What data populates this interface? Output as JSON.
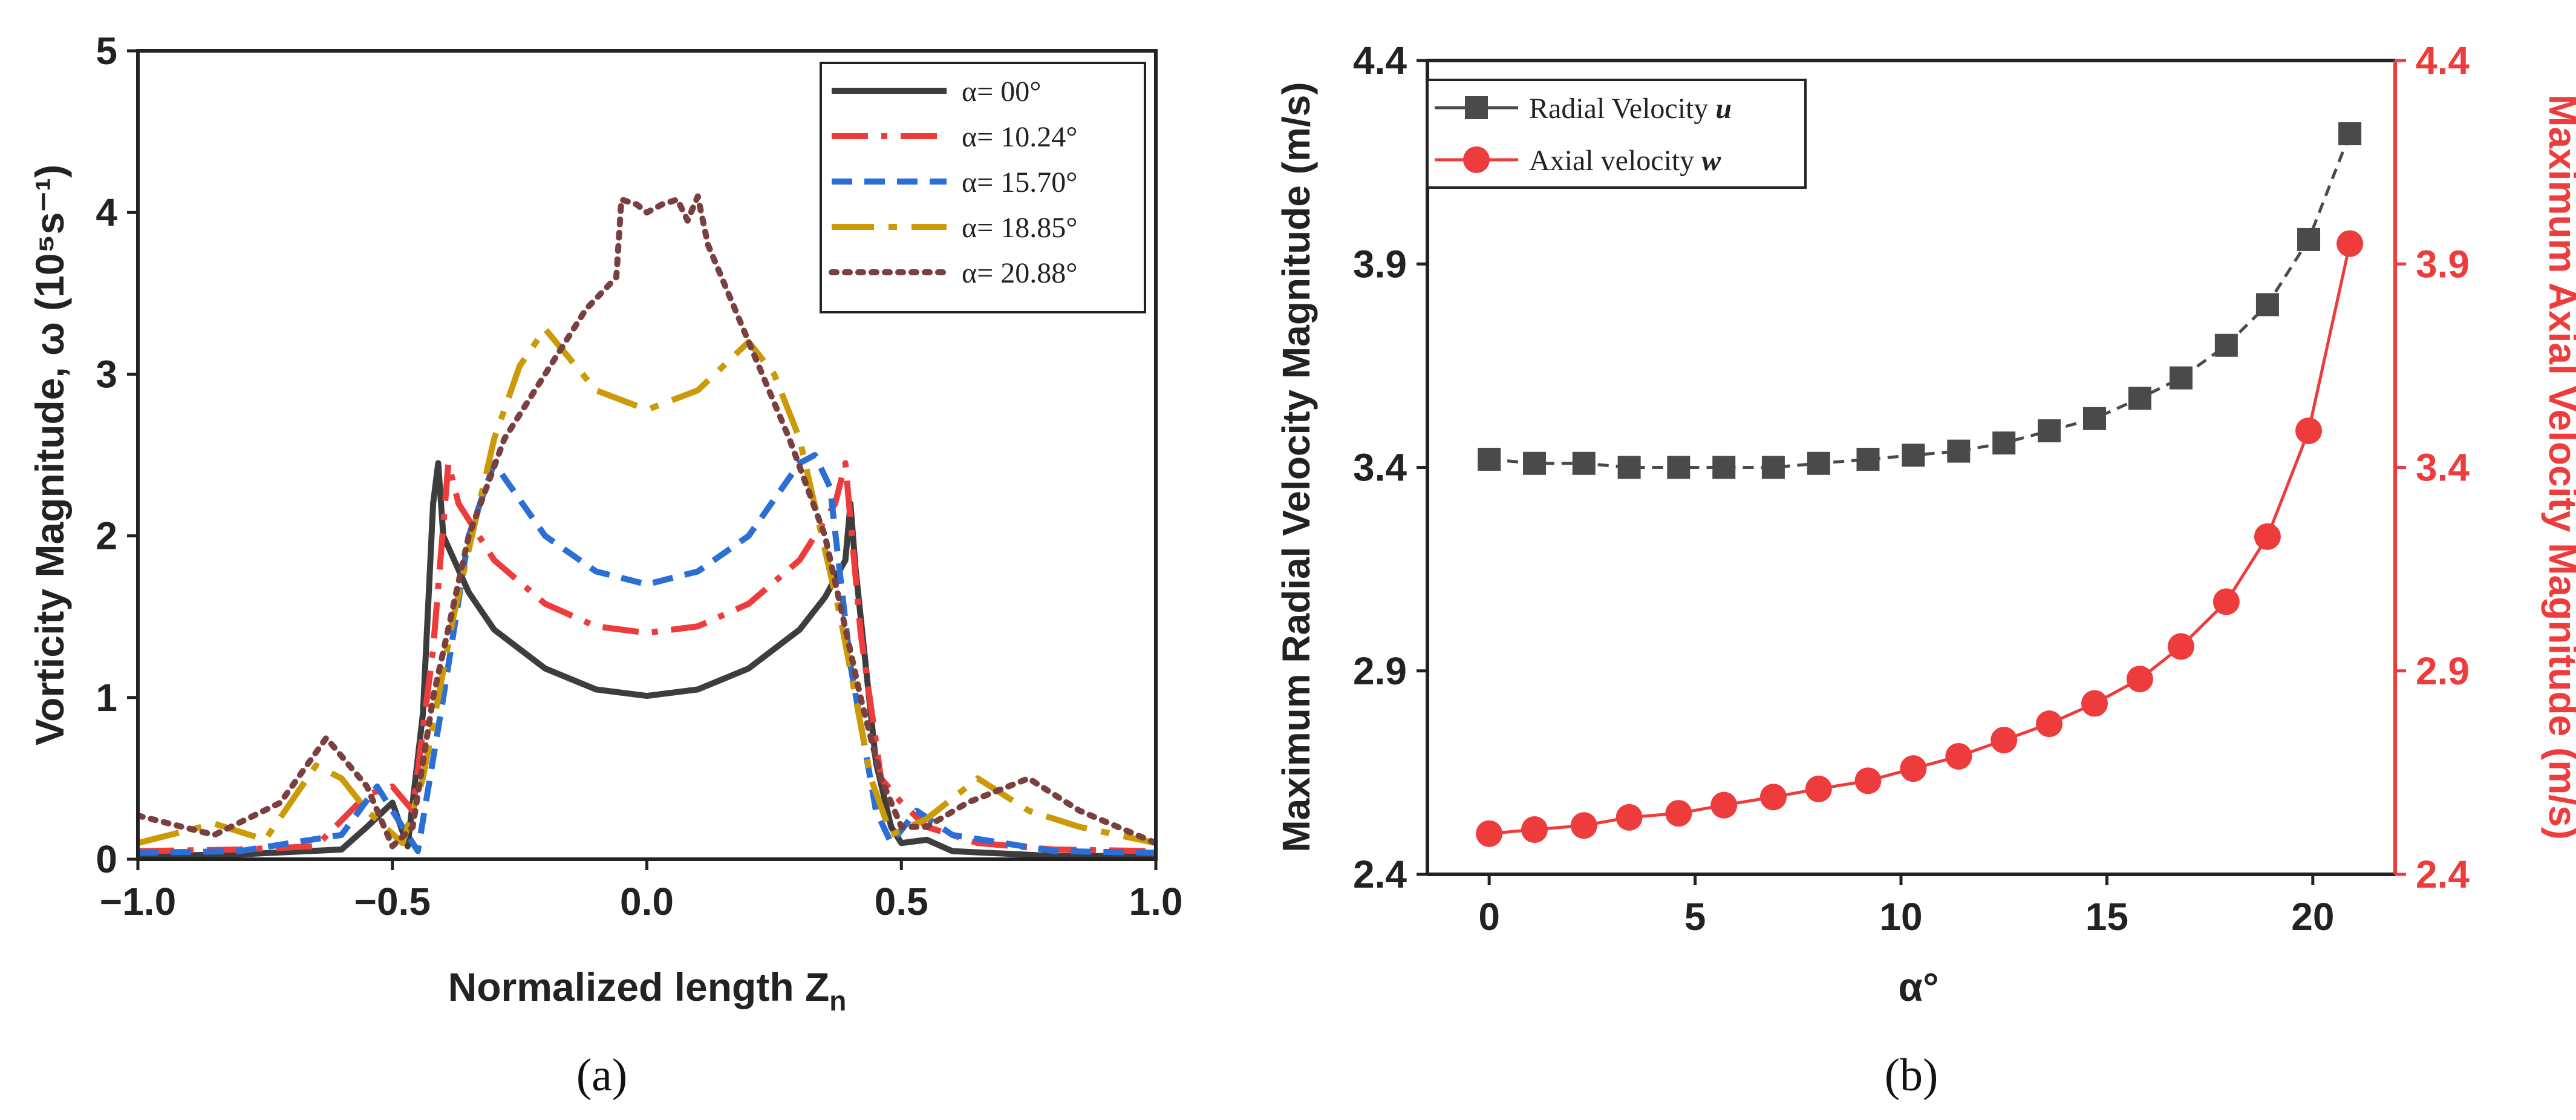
{
  "chart_data": [
    {
      "type": "line",
      "panel_label": "(a)",
      "xlabel": "Normalized length Z",
      "xlabel_sub": "n",
      "ylabel": "Vorticity Magnitude, ω (10⁵s⁻¹)",
      "xlim": [
        -1.0,
        1.0
      ],
      "ylim": [
        0,
        5
      ],
      "x_ticks": [
        "−1.0",
        "−0.5",
        "0.0",
        "0.5",
        "1.0"
      ],
      "y_ticks": [
        "0",
        "1",
        "2",
        "3",
        "4",
        "5"
      ],
      "series": [
        {
          "name": "α= 00°",
          "color": "#3d3d3d",
          "dash": "solid",
          "x": [
            -1.0,
            -0.8,
            -0.6,
            -0.55,
            -0.5,
            -0.47,
            -0.44,
            -0.42,
            -0.41,
            -0.4,
            -0.35,
            -0.3,
            -0.2,
            -0.1,
            0.0,
            0.1,
            0.2,
            0.3,
            0.35,
            0.39,
            0.4,
            0.41,
            0.43,
            0.45,
            0.48,
            0.5,
            0.55,
            0.6,
            0.8,
            1.0
          ],
          "y": [
            0.02,
            0.03,
            0.06,
            0.2,
            0.35,
            0.08,
            0.9,
            2.2,
            2.45,
            2.0,
            1.65,
            1.42,
            1.18,
            1.05,
            1.01,
            1.05,
            1.18,
            1.42,
            1.62,
            1.85,
            2.2,
            1.8,
            1.2,
            0.6,
            0.2,
            0.1,
            0.12,
            0.05,
            0.02,
            0.02
          ]
        },
        {
          "name": "α= 10.24°",
          "color": "#ee3b3b",
          "dash": "dashdot",
          "x": [
            -1.0,
            -0.8,
            -0.65,
            -0.55,
            -0.5,
            -0.46,
            -0.42,
            -0.39,
            -0.37,
            -0.3,
            -0.2,
            -0.1,
            0.0,
            0.1,
            0.2,
            0.3,
            0.37,
            0.39,
            0.42,
            0.46,
            0.5,
            0.55,
            0.65,
            0.8,
            1.0
          ],
          "y": [
            0.05,
            0.06,
            0.08,
            0.4,
            0.45,
            0.3,
            1.3,
            2.45,
            2.2,
            1.85,
            1.58,
            1.44,
            1.4,
            1.44,
            1.58,
            1.85,
            2.2,
            2.45,
            1.4,
            0.5,
            0.35,
            0.2,
            0.1,
            0.06,
            0.05
          ]
        },
        {
          "name": "α= 15.70°",
          "color": "#2b6fd6",
          "dash": "dashed",
          "x": [
            -1.0,
            -0.8,
            -0.6,
            -0.53,
            -0.48,
            -0.45,
            -0.4,
            -0.35,
            -0.3,
            -0.2,
            -0.1,
            0.0,
            0.1,
            0.2,
            0.3,
            0.33,
            0.36,
            0.4,
            0.45,
            0.48,
            0.53,
            0.6,
            0.8,
            1.0
          ],
          "y": [
            0.04,
            0.05,
            0.15,
            0.45,
            0.2,
            0.05,
            1.0,
            2.0,
            2.45,
            2.0,
            1.78,
            1.7,
            1.78,
            2.0,
            2.45,
            2.5,
            2.3,
            1.2,
            0.3,
            0.1,
            0.3,
            0.15,
            0.05,
            0.04
          ]
        },
        {
          "name": "α= 18.85°",
          "color": "#cc9a06",
          "dash": "longdashdot",
          "x": [
            -1.0,
            -0.85,
            -0.75,
            -0.65,
            -0.6,
            -0.55,
            -0.48,
            -0.44,
            -0.38,
            -0.3,
            -0.25,
            -0.2,
            -0.1,
            0.0,
            0.1,
            0.2,
            0.25,
            0.3,
            0.38,
            0.44,
            0.48,
            0.55,
            0.65,
            0.75,
            0.85,
            1.0
          ],
          "y": [
            0.1,
            0.22,
            0.12,
            0.58,
            0.5,
            0.3,
            0.1,
            0.5,
            1.5,
            2.6,
            3.05,
            3.28,
            2.9,
            2.78,
            2.9,
            3.2,
            3.0,
            2.6,
            1.5,
            0.5,
            0.15,
            0.25,
            0.5,
            0.3,
            0.2,
            0.1
          ]
        },
        {
          "name": "α= 20.88°",
          "color": "#7a4040",
          "dash": "dotted",
          "x": [
            -1.0,
            -0.85,
            -0.72,
            -0.63,
            -0.55,
            -0.5,
            -0.46,
            -0.42,
            -0.35,
            -0.28,
            -0.2,
            -0.12,
            -0.06,
            -0.05,
            -0.02,
            0.0,
            0.03,
            0.06,
            0.08,
            0.1,
            0.12,
            0.2,
            0.28,
            0.35,
            0.42,
            0.46,
            0.5,
            0.55,
            0.63,
            0.75,
            0.85,
            1.0
          ],
          "y": [
            0.27,
            0.15,
            0.35,
            0.75,
            0.45,
            0.08,
            0.2,
            1.0,
            2.0,
            2.6,
            3.0,
            3.4,
            3.6,
            4.08,
            4.05,
            4.0,
            4.05,
            4.08,
            3.95,
            4.1,
            3.8,
            3.2,
            2.6,
            2.0,
            1.0,
            0.5,
            0.2,
            0.2,
            0.35,
            0.5,
            0.3,
            0.1
          ]
        }
      ]
    },
    {
      "type": "scatter",
      "panel_label": "(b)",
      "xlabel": "α°",
      "ylabel_left": "Maximum Radial Velocity Magnitude (m/s)",
      "ylabel_right": "Maximum Axial Velocity Magnitude (m/s)",
      "xlim": [
        -1.5,
        22
      ],
      "ylim": [
        2.4,
        4.4
      ],
      "x_ticks": [
        "0",
        "5",
        "10",
        "15",
        "20"
      ],
      "y_ticks": [
        "2.4",
        "2.9",
        "3.4",
        "3.9",
        "4.4"
      ],
      "x": [
        0,
        1.14,
        2.28,
        3.42,
        4.56,
        5.7,
        6.84,
        7.98,
        9.12,
        10.26,
        11.4,
        12.54,
        13.68,
        14.82,
        15.96,
        17.1,
        18.24,
        19.38,
        20.52,
        21.66
      ],
      "x_series_note": "",
      "series": [
        {
          "name": "Radial Velocity ",
          "name_italic": "u",
          "color": "#4a4a4a",
          "marker": "square",
          "axis": "left",
          "x": [
            0,
            1.1,
            2.3,
            3.4,
            4.6,
            5.7,
            6.9,
            8.0,
            9.2,
            10.3,
            11.4,
            12.5,
            13.6,
            14.7,
            15.8,
            16.8,
            17.9,
            18.9,
            19.9,
            20.9
          ],
          "values": [
            3.42,
            3.41,
            3.41,
            3.4,
            3.4,
            3.4,
            3.4,
            3.41,
            3.42,
            3.43,
            3.44,
            3.46,
            3.49,
            3.52,
            3.57,
            3.62,
            3.7,
            3.8,
            3.96,
            4.22
          ]
        },
        {
          "name": "Axial velocity ",
          "name_italic": "w",
          "color": "#ee3b3b",
          "marker": "circle",
          "axis": "right",
          "x": [
            0,
            1.1,
            2.3,
            3.4,
            4.6,
            5.7,
            6.9,
            8.0,
            9.2,
            10.3,
            11.4,
            12.5,
            13.6,
            14.7,
            15.8,
            16.8,
            17.9,
            18.9,
            19.9,
            20.9
          ],
          "values": [
            2.5,
            2.51,
            2.52,
            2.54,
            2.55,
            2.57,
            2.59,
            2.61,
            2.63,
            2.66,
            2.69,
            2.73,
            2.77,
            2.82,
            2.88,
            2.96,
            3.07,
            3.23,
            3.49,
            3.95
          ]
        }
      ]
    }
  ],
  "colors": {
    "right_axis": "#ee3b3b",
    "frame": "#222222"
  }
}
